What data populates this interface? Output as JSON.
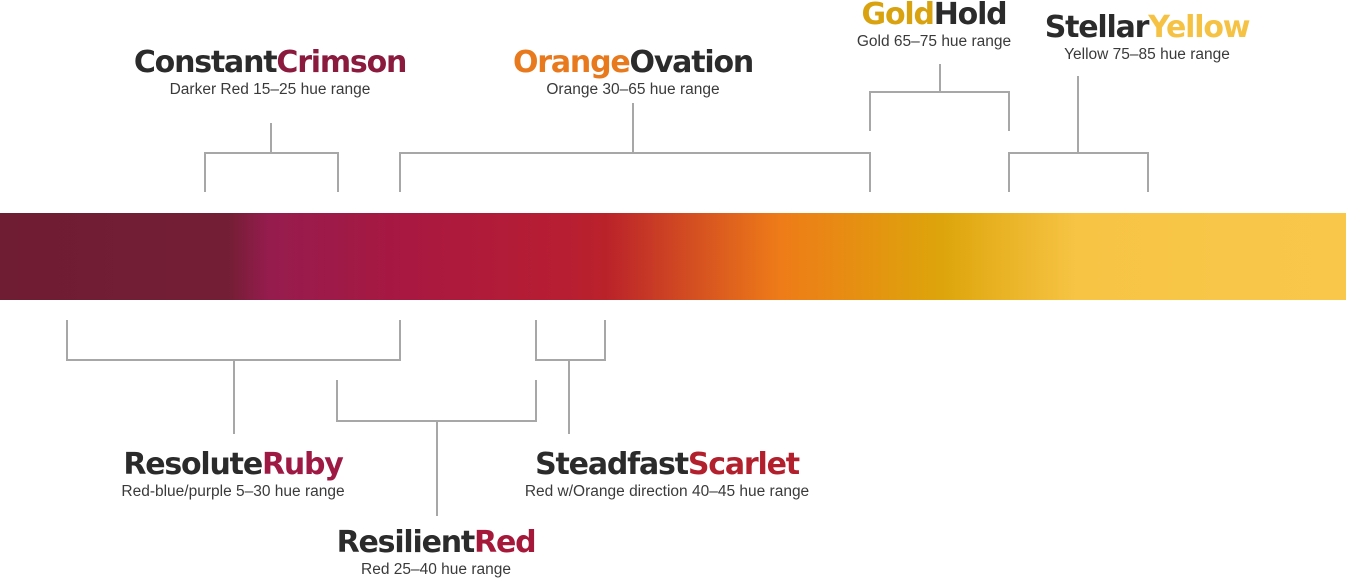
{
  "colors": {
    "text_dark": "#2b2b2b",
    "bracket": "#a7a7a7",
    "crimson": "#8a1a3e",
    "orange": "#e8791d",
    "gold": "#d9a20f",
    "yellow": "#f6c244",
    "ruby": "#9e1a45",
    "red": "#a5183a",
    "scarlet": "#b3202d"
  },
  "spectrum": {
    "stops": [
      {
        "offset": 0.0,
        "color": "#6f1d33"
      },
      {
        "offset": 0.17,
        "color": "#741e35"
      },
      {
        "offset": 0.2,
        "color": "#961c4e"
      },
      {
        "offset": 0.3,
        "color": "#a81841"
      },
      {
        "offset": 0.42,
        "color": "#b81e32"
      },
      {
        "offset": 0.45,
        "color": "#ba222a"
      },
      {
        "offset": 0.58,
        "color": "#ee7c18"
      },
      {
        "offset": 0.7,
        "color": "#dda50b"
      },
      {
        "offset": 0.8,
        "color": "#f7c444"
      },
      {
        "offset": 1.0,
        "color": "#f9c84b"
      }
    ]
  },
  "labels": {
    "constant_crimson": {
      "word1": "Constant",
      "word2": "Crimson",
      "subtitle": "Darker Red 15–25 hue range"
    },
    "orange_ovation": {
      "word1": "Orange",
      "word2": "Ovation",
      "subtitle": "Orange 30–65 hue range"
    },
    "gold_hold": {
      "word1": "Gold",
      "word2": "Hold",
      "subtitle": "Gold 65–75 hue range"
    },
    "stellar_yellow": {
      "word1": "Stellar",
      "word2": "Yellow",
      "subtitle": "Yellow 75–85 hue range"
    },
    "resolute_ruby": {
      "word1": "Resolute",
      "word2": "Ruby",
      "subtitle": "Red-blue/purple 5–30 hue range"
    },
    "steadfast_scarlet": {
      "word1": "Steadfast",
      "word2": "Scarlet",
      "subtitle": "Red w/Orange direction 40–45 hue range"
    },
    "resilient_red": {
      "word1": "Resilient",
      "word2": "Red",
      "subtitle": "Red 25–40 hue range"
    }
  }
}
